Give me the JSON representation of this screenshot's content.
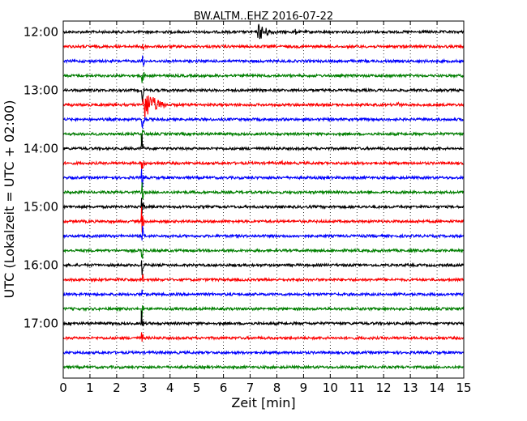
{
  "chart_data": {
    "type": "line",
    "title": "BW.ALTM..EHZ 2016-07-22",
    "xlabel": "Zeit  [min]",
    "ylabel": "UTC (Lokalzeit = UTC + 02:00)",
    "xlim": [
      0,
      15
    ],
    "x_ticks": [
      "0",
      "1",
      "2",
      "3",
      "4",
      "5",
      "6",
      "7",
      "8",
      "9",
      "10",
      "11",
      "12",
      "13",
      "14",
      "15"
    ],
    "y_ticks": [
      "12:00",
      "13:00",
      "14:00",
      "15:00",
      "16:00",
      "17:00"
    ],
    "grid": true,
    "trace_interval_min": 15,
    "trace_colors": [
      "#000000",
      "#ff0000",
      "#0000ff",
      "#008000"
    ],
    "series": [
      {
        "start": "12:00",
        "color": "#000000",
        "events": [
          {
            "x": 7.3,
            "amp": 12,
            "dur": 0.8
          },
          {
            "x": 8.7,
            "amp": 4,
            "dur": 0.2
          }
        ]
      },
      {
        "start": "12:15",
        "color": "#ff0000",
        "events": [
          {
            "x": 2.95,
            "amp": 24,
            "dur": 0.1
          }
        ]
      },
      {
        "start": "12:30",
        "color": "#0000ff",
        "events": [
          {
            "x": 2.95,
            "amp": 24,
            "dur": 0.1
          }
        ]
      },
      {
        "start": "12:45",
        "color": "#008000",
        "events": [
          {
            "x": 2.95,
            "amp": 24,
            "dur": 0.1
          }
        ]
      },
      {
        "start": "13:00",
        "color": "#000000",
        "events": [
          {
            "x": 2.95,
            "amp": 24,
            "dur": 0.1
          }
        ]
      },
      {
        "start": "13:15",
        "color": "#ff0000",
        "events": [
          {
            "x": 3.0,
            "amp": 24,
            "dur": 0.9
          },
          {
            "x": 12.5,
            "amp": 4,
            "dur": 0.5
          }
        ]
      },
      {
        "start": "13:30",
        "color": "#0000ff",
        "events": [
          {
            "x": 2.95,
            "amp": 20,
            "dur": 0.15
          }
        ]
      },
      {
        "start": "13:45",
        "color": "#008000",
        "events": [
          {
            "x": 2.95,
            "amp": 20,
            "dur": 0.1
          }
        ]
      },
      {
        "start": "14:00",
        "color": "#000000",
        "events": [
          {
            "x": 2.95,
            "amp": 20,
            "dur": 0.1
          },
          {
            "x": 14.1,
            "amp": 3,
            "dur": 0.1
          }
        ]
      },
      {
        "start": "14:15",
        "color": "#ff0000",
        "events": [
          {
            "x": 2.95,
            "amp": 20,
            "dur": 0.1
          },
          {
            "x": 8.2,
            "amp": 3,
            "dur": 0.3
          }
        ]
      },
      {
        "start": "14:30",
        "color": "#0000ff",
        "events": [
          {
            "x": 2.95,
            "amp": 20,
            "dur": 0.1
          }
        ]
      },
      {
        "start": "14:45",
        "color": "#008000",
        "events": [
          {
            "x": 2.95,
            "amp": 20,
            "dur": 0.1
          }
        ]
      },
      {
        "start": "15:00",
        "color": "#000000",
        "events": [
          {
            "x": 2.95,
            "amp": 20,
            "dur": 0.1
          },
          {
            "x": 10.3,
            "amp": 3,
            "dur": 0.1
          }
        ]
      },
      {
        "start": "15:15",
        "color": "#ff0000",
        "events": [
          {
            "x": 2.95,
            "amp": 20,
            "dur": 0.1
          },
          {
            "x": 13.3,
            "amp": 3,
            "dur": 0.2
          }
        ]
      },
      {
        "start": "15:30",
        "color": "#0000ff",
        "events": [
          {
            "x": 2.95,
            "amp": 20,
            "dur": 0.1
          },
          {
            "x": 6.5,
            "amp": 3,
            "dur": 0.1
          }
        ]
      },
      {
        "start": "15:45",
        "color": "#008000",
        "events": [
          {
            "x": 2.95,
            "amp": 18,
            "dur": 0.08
          }
        ]
      },
      {
        "start": "16:00",
        "color": "#000000",
        "events": [
          {
            "x": 2.95,
            "amp": 18,
            "dur": 0.08
          }
        ]
      },
      {
        "start": "16:15",
        "color": "#ff0000",
        "events": [
          {
            "x": 2.95,
            "amp": 18,
            "dur": 0.08
          }
        ]
      },
      {
        "start": "16:30",
        "color": "#0000ff",
        "events": [
          {
            "x": 2.95,
            "amp": 10,
            "dur": 0.08
          }
        ]
      },
      {
        "start": "16:45",
        "color": "#008000",
        "events": [
          {
            "x": 2.95,
            "amp": 18,
            "dur": 0.08
          }
        ]
      },
      {
        "start": "17:00",
        "color": "#000000",
        "events": [
          {
            "x": 2.95,
            "amp": 18,
            "dur": 0.08
          }
        ]
      },
      {
        "start": "17:15",
        "color": "#ff0000",
        "events": [
          {
            "x": 2.95,
            "amp": 12,
            "dur": 0.08
          }
        ]
      },
      {
        "start": "17:30",
        "color": "#0000ff",
        "events": []
      },
      {
        "start": "17:45",
        "color": "#008000",
        "events": []
      }
    ]
  }
}
